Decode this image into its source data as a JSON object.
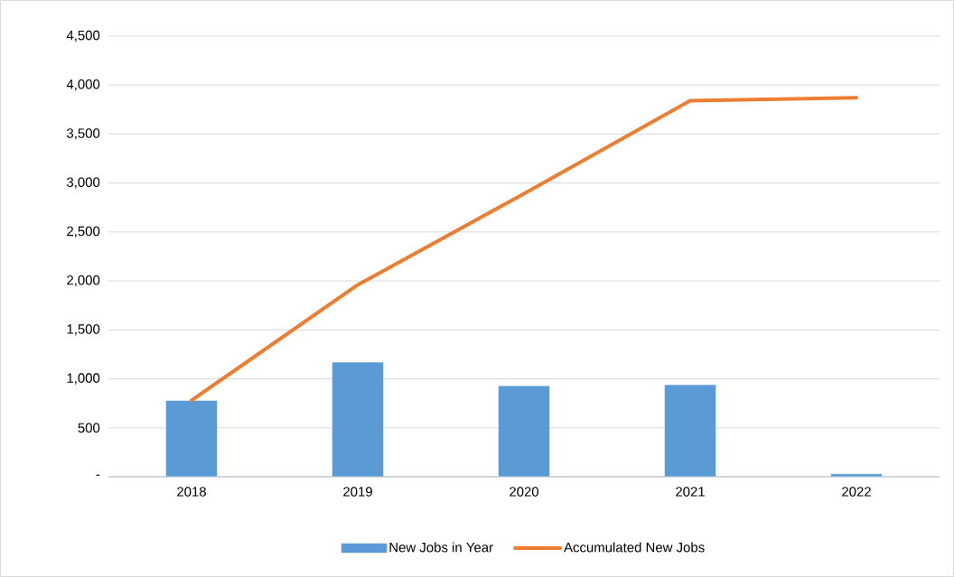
{
  "chart_data": {
    "type": "bar",
    "categories": [
      "2018",
      "2019",
      "2020",
      "2021",
      "2022"
    ],
    "series": [
      {
        "name": "New Jobs in Year",
        "color": "#5b9bd5",
        "values": [
          780,
          1170,
          930,
          940,
          30
        ]
      },
      {
        "name": "Accumulated New Jobs",
        "type": "line",
        "color": "#ed7d31",
        "values": [
          780,
          1960,
          2890,
          3840,
          3870
        ]
      }
    ],
    "ylim": [
      0,
      4500
    ],
    "yticks": [
      {
        "value": 0,
        "label": "-"
      },
      {
        "value": 500,
        "label": "500"
      },
      {
        "value": 1000,
        "label": "1,000"
      },
      {
        "value": 1500,
        "label": "1,500"
      },
      {
        "value": 2000,
        "label": "2,000"
      },
      {
        "value": 2500,
        "label": "2,500"
      },
      {
        "value": 3000,
        "label": "3,000"
      },
      {
        "value": 3500,
        "label": "3,500"
      },
      {
        "value": 4000,
        "label": "4,000"
      },
      {
        "value": 4500,
        "label": "4,500"
      }
    ],
    "grid": "y",
    "legend": "bottom",
    "marker": "none"
  }
}
